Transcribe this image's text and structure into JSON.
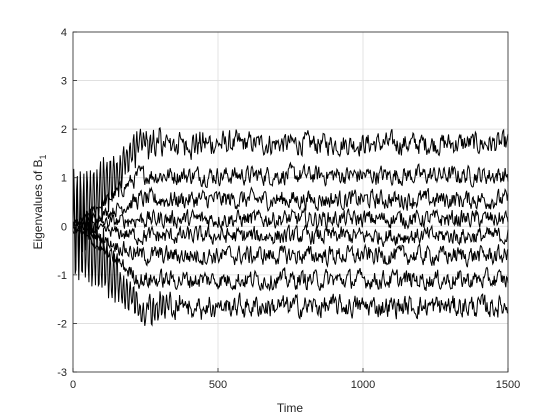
{
  "chart_data": {
    "type": "line",
    "title": "",
    "xlabel": "Time",
    "ylabel": "Eigenvalues of B",
    "ylabel_subscript": "1",
    "xlim": [
      0,
      1500
    ],
    "ylim": [
      -3,
      4
    ],
    "xticks": [
      0,
      500,
      1000,
      1500
    ],
    "xtick_labels": [
      "0",
      "500",
      "1000",
      "1500"
    ],
    "yticks": [
      -3,
      -2,
      -1,
      0,
      1,
      2,
      3,
      4
    ],
    "ytick_labels": [
      "-3",
      "-2",
      "-1",
      "0",
      "1",
      "2",
      "3",
      "4"
    ],
    "grid": true,
    "line_color": "#000000",
    "grid_color": "#dcdcdc",
    "series": [
      {
        "center": 1.7,
        "amplitude": 0.35,
        "transient_amp": 1.1
      },
      {
        "center": 1.05,
        "amplitude": 0.3,
        "transient_amp": 0.0
      },
      {
        "center": 0.55,
        "amplitude": 0.3,
        "transient_amp": 0.0
      },
      {
        "center": 0.15,
        "amplitude": 0.28,
        "transient_amp": 0.0
      },
      {
        "center": -0.2,
        "amplitude": 0.28,
        "transient_amp": 0.0
      },
      {
        "center": -0.6,
        "amplitude": 0.3,
        "transient_amp": 0.0
      },
      {
        "center": -1.1,
        "amplitude": 0.3,
        "transient_amp": 0.0
      },
      {
        "center": -1.65,
        "amplitude": 0.35,
        "transient_amp": 1.1
      }
    ]
  }
}
